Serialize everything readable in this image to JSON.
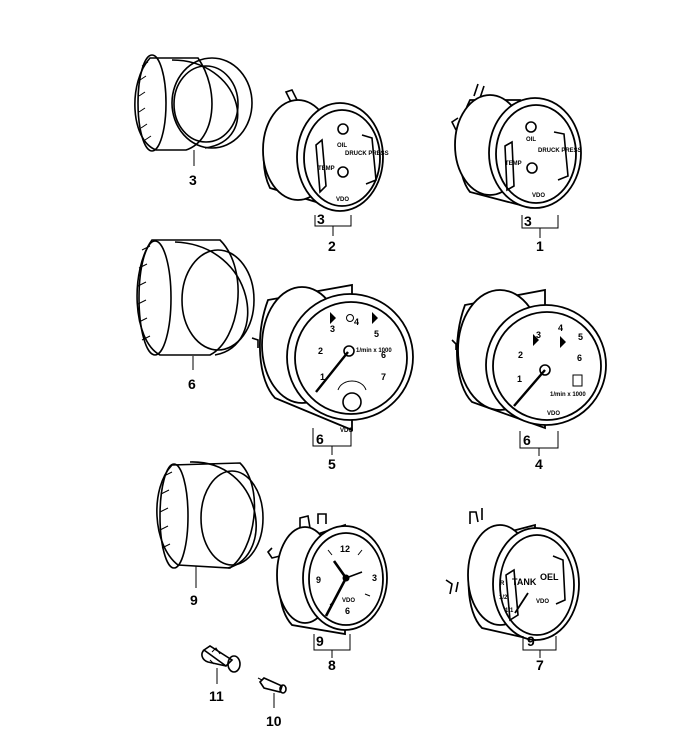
{
  "callouts": {
    "ring_top": "3",
    "ring_mid": "6",
    "ring_bot": "9",
    "g2_sub": "3",
    "g2": "2",
    "g1_sub": "3",
    "g1": "1",
    "g5_sub": "6",
    "g5": "5",
    "g4_sub": "6",
    "g4": "4",
    "g8_sub": "9",
    "g8": "8",
    "g7_sub": "9",
    "g7": "7",
    "bulb_holder": "11",
    "bulb": "10"
  },
  "dial_text": {
    "oil_label": "OIL",
    "press_label": "DRUCK PRESS",
    "temp_label": "TEMP",
    "vdo": "VDO",
    "rpm_unit": "1/min x 1000",
    "tank": "TANK",
    "oel": "OEL",
    "tach5_numbers": [
      "1",
      "2",
      "3",
      "4",
      "5",
      "6",
      "7"
    ],
    "tach4_numbers": [
      "1",
      "2",
      "3",
      "4",
      "5",
      "6"
    ],
    "clock_numbers": [
      "12",
      "3",
      "6",
      "9"
    ],
    "fuel_marks": [
      "R",
      "1/2",
      "1/1"
    ]
  }
}
